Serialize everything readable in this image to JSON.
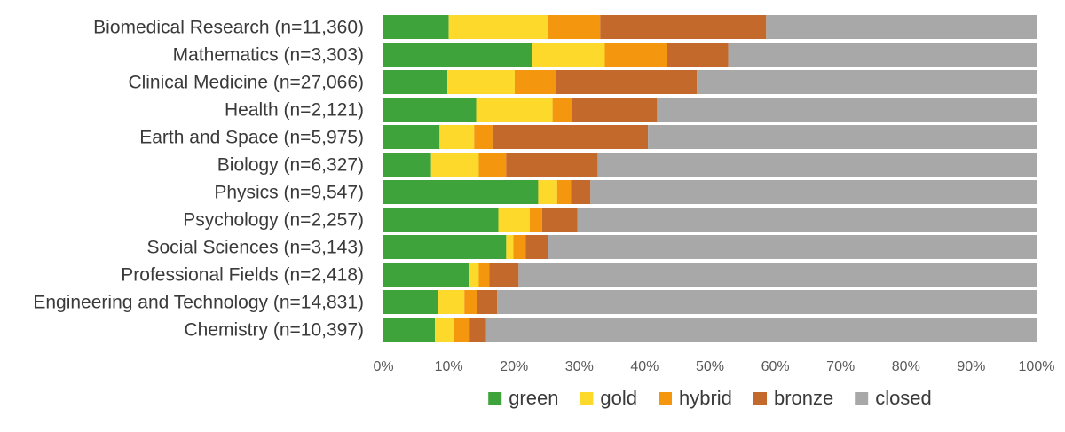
{
  "chart_data": {
    "type": "bar",
    "orientation": "horizontal",
    "stacked": true,
    "normalized": true,
    "categories": [
      "Biomedical Research (n=11,360)",
      "Mathematics (n=3,303)",
      "Clinical Medicine (n=27,066)",
      "Health (n=2,121)",
      "Earth and Space (n=5,975)",
      "Biology (n=6,327)",
      "Physics (n=9,547)",
      "Psychology (n=2,257)",
      "Social Sciences (n=3,143)",
      "Professional Fields (n=2,418)",
      "Engineering and Technology (n=14,831)",
      "Chemistry (n=10,397)"
    ],
    "series": [
      {
        "name": "green",
        "color": "#3fa33c",
        "values": [
          10,
          22.8,
          9.8,
          14.2,
          8.6,
          7.3,
          23.7,
          17.6,
          18.8,
          13.1,
          8.3,
          7.9
        ]
      },
      {
        "name": "gold",
        "color": "#fcd92b",
        "values": [
          15.2,
          11.1,
          10.3,
          11.7,
          5.3,
          7.3,
          2.9,
          4.8,
          1.1,
          1.5,
          4.1,
          2.9
        ]
      },
      {
        "name": "hybrid",
        "color": "#f5960f",
        "values": [
          8.0,
          9.5,
          6.3,
          3.0,
          2.8,
          4.2,
          2.1,
          1.9,
          1.9,
          1.6,
          1.9,
          2.4
        ]
      },
      {
        "name": "bronze",
        "color": "#c2692b",
        "values": [
          25.4,
          9.4,
          21.6,
          13.0,
          23.8,
          14.0,
          3.0,
          5.4,
          3.4,
          4.5,
          3.1,
          2.5
        ]
      },
      {
        "name": "closed",
        "color": "#a8a8a8",
        "values": [
          41.4,
          47.2,
          52.0,
          58.1,
          59.5,
          67.2,
          68.3,
          70.3,
          74.8,
          79.3,
          82.6,
          84.3
        ]
      }
    ],
    "xlim": [
      0,
      100
    ],
    "x_ticks": [
      "0%",
      "10%",
      "20%",
      "30%",
      "40%",
      "50%",
      "60%",
      "70%",
      "80%",
      "90%",
      "100%"
    ],
    "legend": {
      "position": "bottom",
      "entries": [
        "green",
        "gold",
        "hybrid",
        "bronze",
        "closed"
      ]
    },
    "grid": false
  }
}
